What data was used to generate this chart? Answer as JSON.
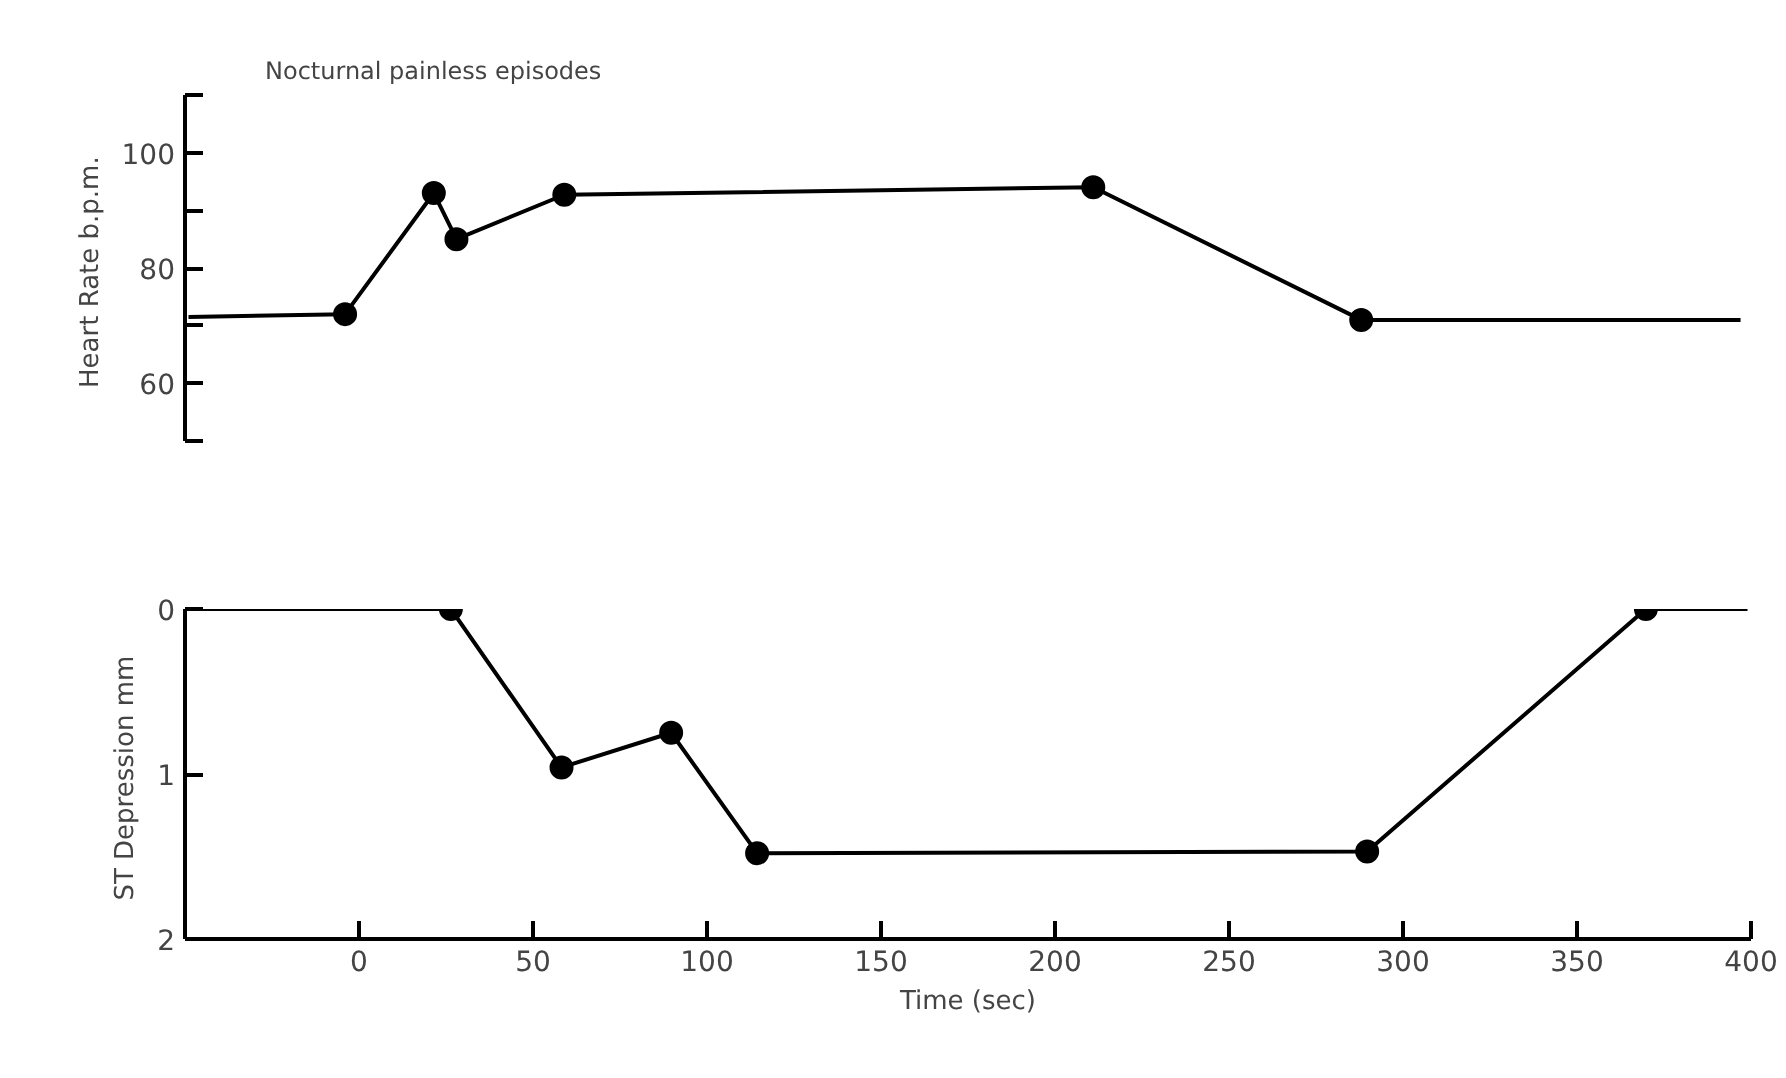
{
  "chart_data": [
    {
      "type": "line",
      "title": "Nocturnal painless episodes",
      "ylabel": "Heart Rate  b.p.m.",
      "xlim": [
        -50,
        400
      ],
      "ylim": [
        50,
        110
      ],
      "yticks": [
        {
          "value": 50,
          "label": null
        },
        60,
        {
          "value": 70,
          "label": null
        },
        80,
        {
          "value": 90,
          "label": null
        },
        100,
        {
          "value": 110,
          "label": null
        }
      ],
      "tick_labels": "y",
      "grid": false,
      "series": [
        {
          "color": "#000000",
          "marker": "none",
          "x": [
            -49,
            -4,
            21.5,
            28,
            59,
            211,
            288,
            397
          ],
          "values": [
            71.5,
            72,
            93,
            85,
            92.7,
            94,
            71,
            71
          ]
        },
        {
          "type": "scatter",
          "color": "#000000",
          "marker": "circle",
          "x": [
            -4,
            21.5,
            28,
            59,
            211,
            288
          ],
          "values": [
            72,
            93,
            85,
            92.7,
            94,
            71
          ]
        }
      ]
    },
    {
      "type": "line",
      "ylabel": "ST Depression  mm",
      "xlabel": "Time (sec)",
      "xlim": [
        -50,
        400
      ],
      "xticks": [
        0,
        50,
        100,
        150,
        200,
        250,
        300,
        350,
        400
      ],
      "ylim": [
        2,
        0
      ],
      "yticks": [
        0,
        1,
        2
      ],
      "grid": false,
      "series": [
        {
          "color": "#000000",
          "marker": "none",
          "x": [
            -49,
            26.4,
            58.2,
            89.7,
            114.4,
            289.7,
            369.8,
            399
          ],
          "values": [
            0,
            0,
            0.96,
            0.75,
            1.48,
            1.47,
            0,
            0
          ]
        },
        {
          "type": "scatter",
          "color": "#000000",
          "marker": "circle",
          "x": [
            26.4,
            58.2,
            89.7,
            114.4,
            289.7,
            369.8
          ],
          "values": [
            0,
            0.96,
            0.75,
            1.48,
            1.47,
            0
          ]
        }
      ]
    }
  ]
}
